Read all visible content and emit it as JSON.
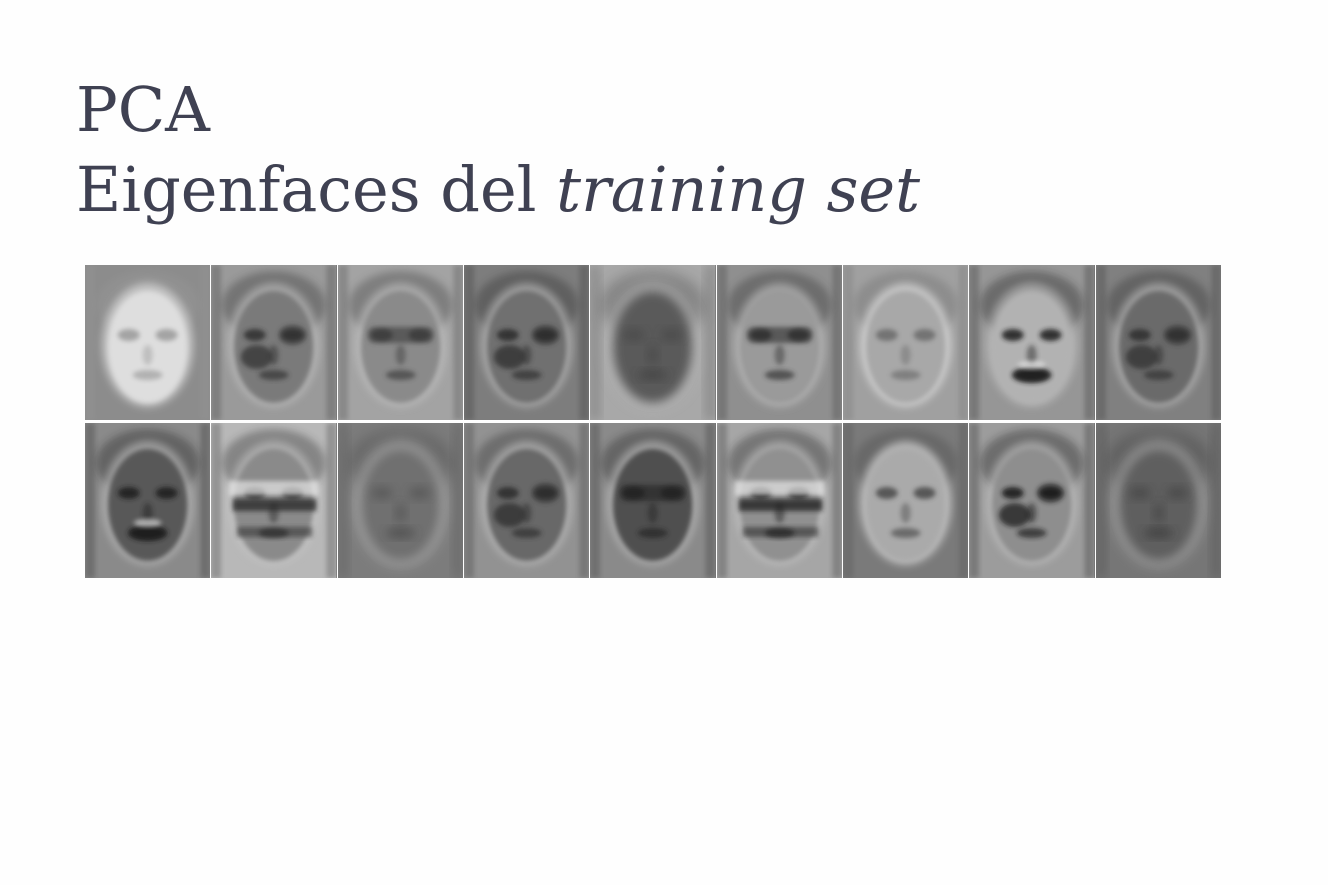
{
  "slide": {
    "title_line1": "PCA",
    "title_line2_prefix": "Eigenfaces del ",
    "title_line2_italic": "training set"
  },
  "eigenfaces": [
    {
      "bg": "#8c8c8c",
      "face": "#dedede",
      "dark": "#9a9a9a",
      "style": "bright"
    },
    {
      "bg": "#9a9a9a",
      "face": "#7a7a7a",
      "dark": "#2e2e2e",
      "style": "patchy"
    },
    {
      "bg": "#a3a3a3",
      "face": "#8a8a8a",
      "dark": "#3a3a3a",
      "style": "glasses"
    },
    {
      "bg": "#7d7d7d",
      "face": "#6f6f6f",
      "dark": "#2a2a2a",
      "style": "patchy"
    },
    {
      "bg": "#a8a8a8",
      "face": "#5a5a5a",
      "dark": "#3a3a3a",
      "style": "blurry"
    },
    {
      "bg": "#8f8f8f",
      "face": "#9a9a9a",
      "dark": "#2f2f2f",
      "style": "glasses"
    },
    {
      "bg": "#a0a0a0",
      "face": "#a8a8a8",
      "dark": "#6a6a6a",
      "style": "bright"
    },
    {
      "bg": "#969696",
      "face": "#b2b2b2",
      "dark": "#1e1e1e",
      "style": "contrast"
    },
    {
      "bg": "#808080",
      "face": "#6a6a6a",
      "dark": "#2e2e2e",
      "style": "patchy"
    },
    {
      "bg": "#8a8a8a",
      "face": "#585858",
      "dark": "#1f1f1f",
      "style": "contrast"
    },
    {
      "bg": "#b8b8b8",
      "face": "#8a8a8a",
      "dark": "#262626",
      "style": "bands"
    },
    {
      "bg": "#7c7c7c",
      "face": "#6f6f6f",
      "dark": "#3f3f3f",
      "style": "blurry"
    },
    {
      "bg": "#929292",
      "face": "#676767",
      "dark": "#2c2c2c",
      "style": "patchy"
    },
    {
      "bg": "#8a8a8a",
      "face": "#4f4f4f",
      "dark": "#222222",
      "style": "glasses"
    },
    {
      "bg": "#a6a6a6",
      "face": "#909090",
      "dark": "#1a1a1a",
      "style": "bands"
    },
    {
      "bg": "#7a7a7a",
      "face": "#aaaaaa",
      "dark": "#4a4a4a",
      "style": "bright"
    },
    {
      "bg": "#9c9c9c",
      "face": "#8e8e8e",
      "dark": "#161616",
      "style": "patchy"
    },
    {
      "bg": "#767676",
      "face": "#5e5e5e",
      "dark": "#303030",
      "style": "blurry"
    }
  ]
}
